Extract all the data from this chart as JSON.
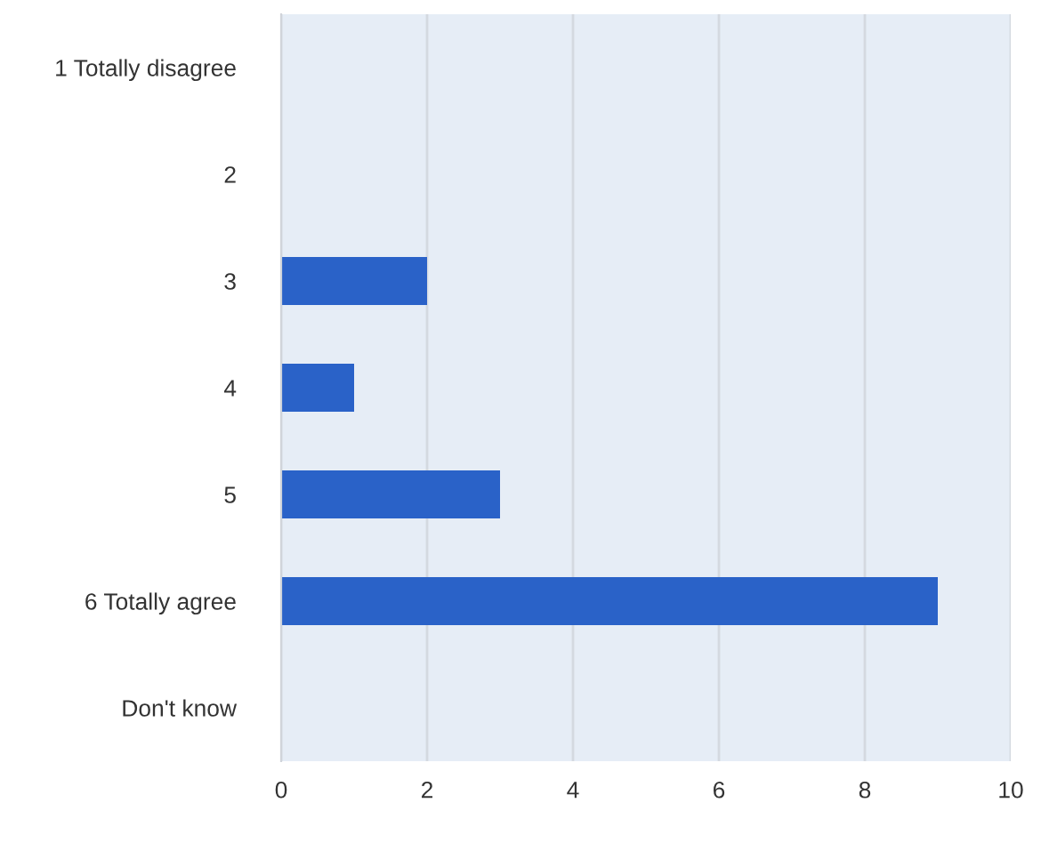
{
  "chart_data": {
    "type": "bar",
    "orientation": "horizontal",
    "categories": [
      "1 Totally disagree",
      "2",
      "3",
      "4",
      "5",
      "6 Totally agree",
      "Don't know"
    ],
    "values": [
      0,
      0,
      2,
      1,
      3,
      9,
      0
    ],
    "color": "#2a62c8",
    "xlim": [
      0,
      10
    ],
    "xticks": [
      0,
      2,
      4,
      6,
      8,
      10
    ],
    "grid": "x"
  }
}
